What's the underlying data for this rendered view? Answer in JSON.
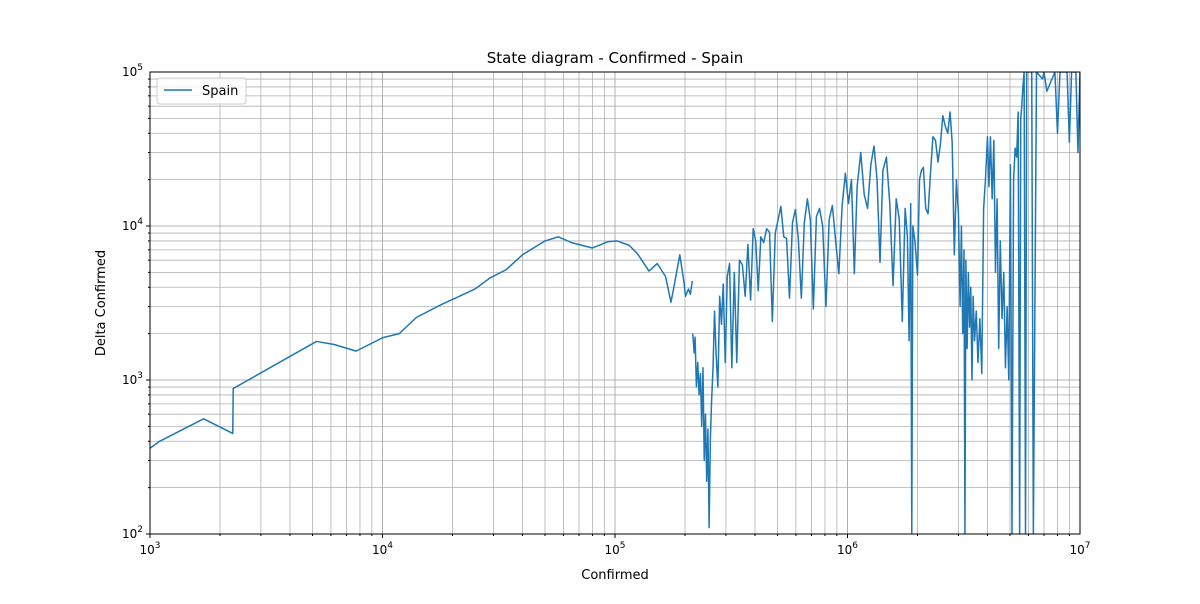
{
  "chart_data": {
    "type": "line",
    "title": "State diagram - Confirmed - Spain",
    "xlabel": "Confirmed",
    "ylabel": "Delta Confirmed",
    "xscale": "log",
    "yscale": "log",
    "xlim": [
      1000,
      10000000
    ],
    "ylim": [
      100,
      100000
    ],
    "x_ticks": [
      {
        "base": "10",
        "exp": "3",
        "value": 1000
      },
      {
        "base": "10",
        "exp": "4",
        "value": 10000
      },
      {
        "base": "10",
        "exp": "5",
        "value": 100000
      },
      {
        "base": "10",
        "exp": "6",
        "value": 1000000
      },
      {
        "base": "10",
        "exp": "7",
        "value": 10000000
      }
    ],
    "y_ticks": [
      {
        "base": "10",
        "exp": "2",
        "value": 100
      },
      {
        "base": "10",
        "exp": "3",
        "value": 1000
      },
      {
        "base": "10",
        "exp": "4",
        "value": 10000
      },
      {
        "base": "10",
        "exp": "5",
        "value": 100000
      }
    ],
    "grid": "major and minor",
    "legend_position": "upper-left",
    "series": [
      {
        "name": "Spain",
        "color": "#1f77b4",
        "points": [
          [
            1000,
            360
          ],
          [
            1100,
            400
          ],
          [
            1700,
            560
          ],
          [
            2270,
            450
          ],
          [
            2280,
            880
          ],
          [
            5200,
            1780
          ],
          [
            6200,
            1700
          ],
          [
            7700,
            1540
          ],
          [
            10000,
            1880
          ],
          [
            11800,
            2000
          ],
          [
            14000,
            2550
          ],
          [
            18000,
            3100
          ],
          [
            21000,
            3450
          ],
          [
            25000,
            3900
          ],
          [
            29000,
            4600
          ],
          [
            34000,
            5200
          ],
          [
            40000,
            6500
          ],
          [
            50000,
            8000
          ],
          [
            57000,
            8500
          ],
          [
            65000,
            7800
          ],
          [
            80000,
            7200
          ],
          [
            93000,
            7900
          ],
          [
            102000,
            8000
          ],
          [
            115000,
            7500
          ],
          [
            125000,
            6600
          ],
          [
            140000,
            5100
          ],
          [
            152000,
            5700
          ],
          [
            165000,
            4700
          ],
          [
            174000,
            3200
          ],
          [
            178000,
            3800
          ],
          [
            190000,
            6500
          ],
          [
            198000,
            4300
          ],
          [
            201000,
            3500
          ],
          [
            207000,
            3900
          ],
          [
            211000,
            3600
          ],
          [
            215000,
            4400
          ],
          [
            216000,
            2000
          ],
          [
            219000,
            1500
          ],
          [
            221000,
            1900
          ],
          [
            224000,
            900
          ],
          [
            227000,
            1300
          ],
          [
            230000,
            800
          ],
          [
            233000,
            1100
          ],
          [
            236000,
            500
          ],
          [
            239000,
            1200
          ],
          [
            242000,
            300
          ],
          [
            245000,
            600
          ],
          [
            248000,
            220
          ],
          [
            251000,
            480
          ],
          [
            254000,
            110
          ],
          [
            257000,
            400
          ],
          [
            260000,
            700
          ],
          [
            264000,
            1200
          ],
          [
            268000,
            2800
          ],
          [
            272000,
            1500
          ],
          [
            277000,
            900
          ],
          [
            282000,
            3500
          ],
          [
            287000,
            2300
          ],
          [
            292000,
            4200
          ],
          [
            298000,
            1300
          ],
          [
            304000,
            4700
          ],
          [
            311000,
            5700
          ],
          [
            318000,
            1200
          ],
          [
            326000,
            5000
          ],
          [
            334000,
            1300
          ],
          [
            343000,
            6000
          ],
          [
            353000,
            5600
          ],
          [
            363000,
            3500
          ],
          [
            373000,
            7600
          ],
          [
            383000,
            3300
          ],
          [
            393000,
            9600
          ],
          [
            403000,
            8000
          ],
          [
            413000,
            3800
          ],
          [
            424000,
            8500
          ],
          [
            436000,
            7800
          ],
          [
            449000,
            9600
          ],
          [
            462000,
            9100
          ],
          [
            475000,
            2400
          ],
          [
            489000,
            9000
          ],
          [
            503000,
            11000
          ],
          [
            517000,
            13400
          ],
          [
            532000,
            8500
          ],
          [
            547000,
            8300
          ],
          [
            563000,
            3400
          ],
          [
            580000,
            10500
          ],
          [
            597000,
            12800
          ],
          [
            615000,
            8100
          ],
          [
            633000,
            3400
          ],
          [
            652000,
            10500
          ],
          [
            672000,
            15000
          ],
          [
            692000,
            11000
          ],
          [
            713000,
            2900
          ],
          [
            735000,
            11500
          ],
          [
            758000,
            13000
          ],
          [
            782000,
            10000
          ],
          [
            808000,
            3000
          ],
          [
            834000,
            11000
          ],
          [
            861000,
            13600
          ],
          [
            889000,
            8000
          ],
          [
            918000,
            4900
          ],
          [
            948000,
            13500
          ],
          [
            979000,
            22000
          ],
          [
            1010000,
            14000
          ],
          [
            1040000,
            20000
          ],
          [
            1070000,
            4900
          ],
          [
            1100000,
            18000
          ],
          [
            1140000,
            30000
          ],
          [
            1180000,
            16000
          ],
          [
            1220000,
            13000
          ],
          [
            1260000,
            25000
          ],
          [
            1300000,
            33000
          ],
          [
            1340000,
            20000
          ],
          [
            1380000,
            5800
          ],
          [
            1420000,
            23000
          ],
          [
            1470000,
            28000
          ],
          [
            1520000,
            14000
          ],
          [
            1570000,
            4100
          ],
          [
            1620000,
            15000
          ],
          [
            1670000,
            11000
          ],
          [
            1720000,
            2400
          ],
          [
            1770000,
            13000
          ],
          [
            1810000,
            8500
          ],
          [
            1840000,
            1800
          ],
          [
            1870000,
            14000
          ],
          [
            1890000,
            100
          ],
          [
            1910000,
            10000
          ],
          [
            1950000,
            8000
          ],
          [
            2000000,
            4800
          ],
          [
            2040000,
            20000
          ],
          [
            2080000,
            23000
          ],
          [
            2120000,
            24000
          ],
          [
            2170000,
            13000
          ],
          [
            2220000,
            12000
          ],
          [
            2270000,
            21000
          ],
          [
            2330000,
            38000
          ],
          [
            2390000,
            36000
          ],
          [
            2450000,
            26000
          ],
          [
            2510000,
            34000
          ],
          [
            2570000,
            52000
          ],
          [
            2640000,
            44000
          ],
          [
            2700000,
            40000
          ],
          [
            2760000,
            55000
          ],
          [
            2820000,
            35000
          ],
          [
            2880000,
            6500
          ],
          [
            2940000,
            20000
          ],
          [
            3000000,
            12000
          ],
          [
            3050000,
            3000
          ],
          [
            3090000,
            10000
          ],
          [
            3130000,
            2000
          ],
          [
            3170000,
            7000
          ],
          [
            3200000,
            100
          ],
          [
            3230000,
            6000
          ],
          [
            3270000,
            1600
          ],
          [
            3310000,
            5000
          ],
          [
            3350000,
            2200
          ],
          [
            3390000,
            4000
          ],
          [
            3430000,
            1000
          ],
          [
            3470000,
            3500
          ],
          [
            3520000,
            1800
          ],
          [
            3580000,
            2800
          ],
          [
            3640000,
            1300
          ],
          [
            3710000,
            2500
          ],
          [
            3780000,
            1100
          ],
          [
            3850000,
            13000
          ],
          [
            3920000,
            20000
          ],
          [
            4000000,
            38000
          ],
          [
            4060000,
            18000
          ],
          [
            4120000,
            38000
          ],
          [
            4190000,
            15000
          ],
          [
            4260000,
            36000
          ],
          [
            4330000,
            5000
          ],
          [
            4400000,
            15000
          ],
          [
            4470000,
            1600
          ],
          [
            4540000,
            8000
          ],
          [
            4620000,
            2500
          ],
          [
            4700000,
            5000
          ],
          [
            4780000,
            1200
          ],
          [
            4860000,
            3000
          ],
          [
            4940000,
            1000
          ],
          [
            5020000,
            25000
          ],
          [
            5100000,
            100
          ],
          [
            5180000,
            20000
          ],
          [
            5260000,
            32000
          ],
          [
            5340000,
            28000
          ],
          [
            5420000,
            55000
          ],
          [
            5500000,
            100
          ],
          [
            5560000,
            50000
          ],
          [
            5620000,
            60000
          ],
          [
            5680000,
            80000
          ],
          [
            5750000,
            100000
          ],
          [
            5830000,
            100
          ],
          [
            5900000,
            100000
          ],
          [
            6100000,
            100000
          ],
          [
            6200000,
            100000
          ],
          [
            6300000,
            100
          ],
          [
            6500000,
            100000
          ],
          [
            6900000,
            90000
          ],
          [
            7000000,
            100000
          ],
          [
            7200000,
            75000
          ],
          [
            7800000,
            100000
          ],
          [
            8000000,
            40000
          ],
          [
            8200000,
            100000
          ],
          [
            8800000,
            100000
          ],
          [
            9000000,
            35000
          ],
          [
            9200000,
            100000
          ],
          [
            9600000,
            100000
          ],
          [
            9800000,
            30000
          ],
          [
            10000000,
            100000
          ]
        ]
      }
    ]
  }
}
